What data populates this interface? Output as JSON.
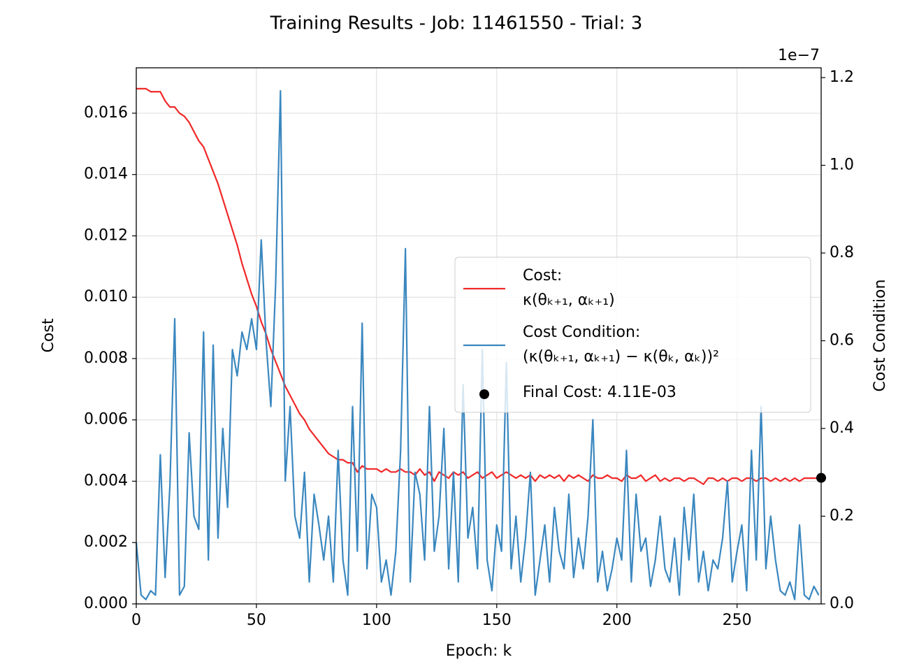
{
  "chart_data": {
    "type": "line",
    "title": "Training Results - Job: 11461550 - Trial: 3",
    "xlabel": "Epoch: k",
    "ylabel": "Cost",
    "y2label": "Cost Condition",
    "y2_offset_label": "1e−7",
    "x": [
      0,
      2,
      4,
      6,
      8,
      10,
      12,
      14,
      16,
      18,
      20,
      22,
      24,
      26,
      28,
      30,
      32,
      34,
      36,
      38,
      40,
      42,
      44,
      46,
      48,
      50,
      52,
      54,
      56,
      58,
      60,
      62,
      64,
      66,
      68,
      70,
      72,
      74,
      76,
      78,
      80,
      82,
      84,
      86,
      88,
      90,
      92,
      94,
      96,
      98,
      100,
      102,
      104,
      106,
      108,
      110,
      112,
      114,
      116,
      118,
      120,
      122,
      124,
      126,
      128,
      130,
      132,
      134,
      136,
      138,
      140,
      142,
      144,
      146,
      148,
      150,
      152,
      154,
      156,
      158,
      160,
      162,
      164,
      166,
      168,
      170,
      172,
      174,
      176,
      178,
      180,
      182,
      184,
      186,
      188,
      190,
      192,
      194,
      196,
      198,
      200,
      202,
      204,
      206,
      208,
      210,
      212,
      214,
      216,
      218,
      220,
      222,
      224,
      226,
      228,
      230,
      232,
      234,
      236,
      238,
      240,
      242,
      244,
      246,
      248,
      250,
      252,
      254,
      256,
      258,
      260,
      262,
      264,
      266,
      268,
      270,
      272,
      274,
      276,
      278,
      280,
      282,
      284
    ],
    "series": [
      {
        "name": "Cost:\nκ(θₖ₊₁, αₖ₊₁)",
        "color": "#f02828",
        "axis": "y",
        "values": [
          0.0168,
          0.0168,
          0.0168,
          0.0167,
          0.0167,
          0.0167,
          0.0164,
          0.0162,
          0.0162,
          0.016,
          0.0159,
          0.0157,
          0.0154,
          0.0151,
          0.0149,
          0.0145,
          0.0141,
          0.0137,
          0.0132,
          0.0127,
          0.0122,
          0.0117,
          0.0111,
          0.0106,
          0.0101,
          0.0097,
          0.0092,
          0.0088,
          0.0083,
          0.0079,
          0.0075,
          0.0071,
          0.0068,
          0.0065,
          0.0062,
          0.006,
          0.0057,
          0.0055,
          0.0053,
          0.0051,
          0.0049,
          0.0048,
          0.0047,
          0.0047,
          0.0046,
          0.0046,
          0.0043,
          0.0045,
          0.0044,
          0.0044,
          0.0044,
          0.0043,
          0.0044,
          0.0043,
          0.0043,
          0.0044,
          0.0043,
          0.0043,
          0.0042,
          0.0044,
          0.0042,
          0.0043,
          0.004,
          0.0043,
          0.0042,
          0.0041,
          0.0043,
          0.0042,
          0.0043,
          0.0041,
          0.0042,
          0.0043,
          0.0041,
          0.0042,
          0.0043,
          0.0041,
          0.0042,
          0.0043,
          0.0042,
          0.0041,
          0.0042,
          0.0041,
          0.0042,
          0.004,
          0.0042,
          0.0041,
          0.0042,
          0.0041,
          0.0042,
          0.004,
          0.0042,
          0.0041,
          0.0042,
          0.0041,
          0.004,
          0.0042,
          0.0041,
          0.0041,
          0.0042,
          0.0041,
          0.0041,
          0.004,
          0.0042,
          0.0041,
          0.0041,
          0.0042,
          0.004,
          0.0041,
          0.0042,
          0.004,
          0.0041,
          0.004,
          0.0041,
          0.0041,
          0.004,
          0.0041,
          0.0041,
          0.004,
          0.0039,
          0.0041,
          0.0041,
          0.004,
          0.0041,
          0.004,
          0.0041,
          0.0041,
          0.004,
          0.0041,
          0.0041,
          0.004,
          0.0041,
          0.0041,
          0.004,
          0.0041,
          0.004,
          0.0041,
          0.004,
          0.0041,
          0.004,
          0.0041,
          0.0041,
          0.0041,
          0.0041
        ]
      },
      {
        "name": "Cost Condition:\n(κ(θₖ₊₁, αₖ₊₁) − κ(θₖ, αₖ))²",
        "color": "#3a87bf",
        "axis": "y2",
        "values": [
          0.14,
          0.02,
          0.01,
          0.03,
          0.02,
          0.34,
          0.06,
          0.27,
          0.65,
          0.02,
          0.04,
          0.39,
          0.2,
          0.17,
          0.62,
          0.1,
          0.59,
          0.15,
          0.4,
          0.22,
          0.58,
          0.52,
          0.62,
          0.58,
          0.65,
          0.58,
          0.83,
          0.6,
          0.45,
          0.73,
          1.17,
          0.28,
          0.45,
          0.2,
          0.15,
          0.3,
          0.05,
          0.25,
          0.18,
          0.1,
          0.2,
          0.05,
          0.35,
          0.1,
          0.02,
          0.45,
          0.12,
          0.64,
          0.08,
          0.25,
          0.22,
          0.05,
          0.1,
          0.02,
          0.12,
          0.35,
          0.81,
          0.05,
          0.3,
          0.25,
          0.1,
          0.45,
          0.12,
          0.2,
          0.4,
          0.08,
          0.3,
          0.05,
          0.5,
          0.15,
          0.22,
          0.08,
          0.58,
          0.1,
          0.03,
          0.18,
          0.12,
          0.55,
          0.08,
          0.2,
          0.05,
          0.15,
          0.3,
          0.02,
          0.1,
          0.18,
          0.05,
          0.22,
          0.12,
          0.08,
          0.25,
          0.06,
          0.15,
          0.08,
          0.2,
          0.42,
          0.05,
          0.12,
          0.03,
          0.08,
          0.15,
          0.1,
          0.35,
          0.05,
          0.25,
          0.12,
          0.15,
          0.04,
          0.1,
          0.2,
          0.08,
          0.05,
          0.15,
          0.02,
          0.22,
          0.1,
          0.25,
          0.05,
          0.12,
          0.03,
          0.1,
          0.08,
          0.15,
          0.28,
          0.05,
          0.12,
          0.18,
          0.03,
          0.35,
          0.1,
          0.45,
          0.08,
          0.2,
          0.1,
          0.03,
          0.02,
          0.05,
          0.01,
          0.18,
          0.02,
          0.01,
          0.04,
          0.02
        ]
      }
    ],
    "final_point": {
      "x": 285,
      "y": 0.00411,
      "label": "Final Cost: 4.11E-03",
      "color": "#000000"
    },
    "xlim": [
      0,
      285
    ],
    "xticks": [
      0,
      50,
      100,
      150,
      200,
      250
    ],
    "ylim": [
      0,
      0.01748
    ],
    "yticks": [
      {
        "value": 0,
        "label": "0.000"
      },
      {
        "value": 0.002,
        "label": "0.002"
      },
      {
        "value": 0.004,
        "label": "0.004"
      },
      {
        "value": 0.006,
        "label": "0.006"
      },
      {
        "value": 0.008,
        "label": "0.008"
      },
      {
        "value": 0.01,
        "label": "0.010"
      },
      {
        "value": 0.012,
        "label": "0.012"
      },
      {
        "value": 0.014,
        "label": "0.014"
      },
      {
        "value": 0.016,
        "label": "0.016"
      }
    ],
    "y2lim": [
      0,
      1.2223
    ],
    "y2ticks": [
      {
        "value": 0,
        "label": "0.0"
      },
      {
        "value": 0.2,
        "label": "0.2"
      },
      {
        "value": 0.4,
        "label": "0.4"
      },
      {
        "value": 0.6,
        "label": "0.6"
      },
      {
        "value": 0.8,
        "label": "0.8"
      },
      {
        "value": 1,
        "label": "1.0"
      },
      {
        "value": 1.2,
        "label": "1.2"
      }
    ],
    "grid": true,
    "legend_position": "right"
  }
}
